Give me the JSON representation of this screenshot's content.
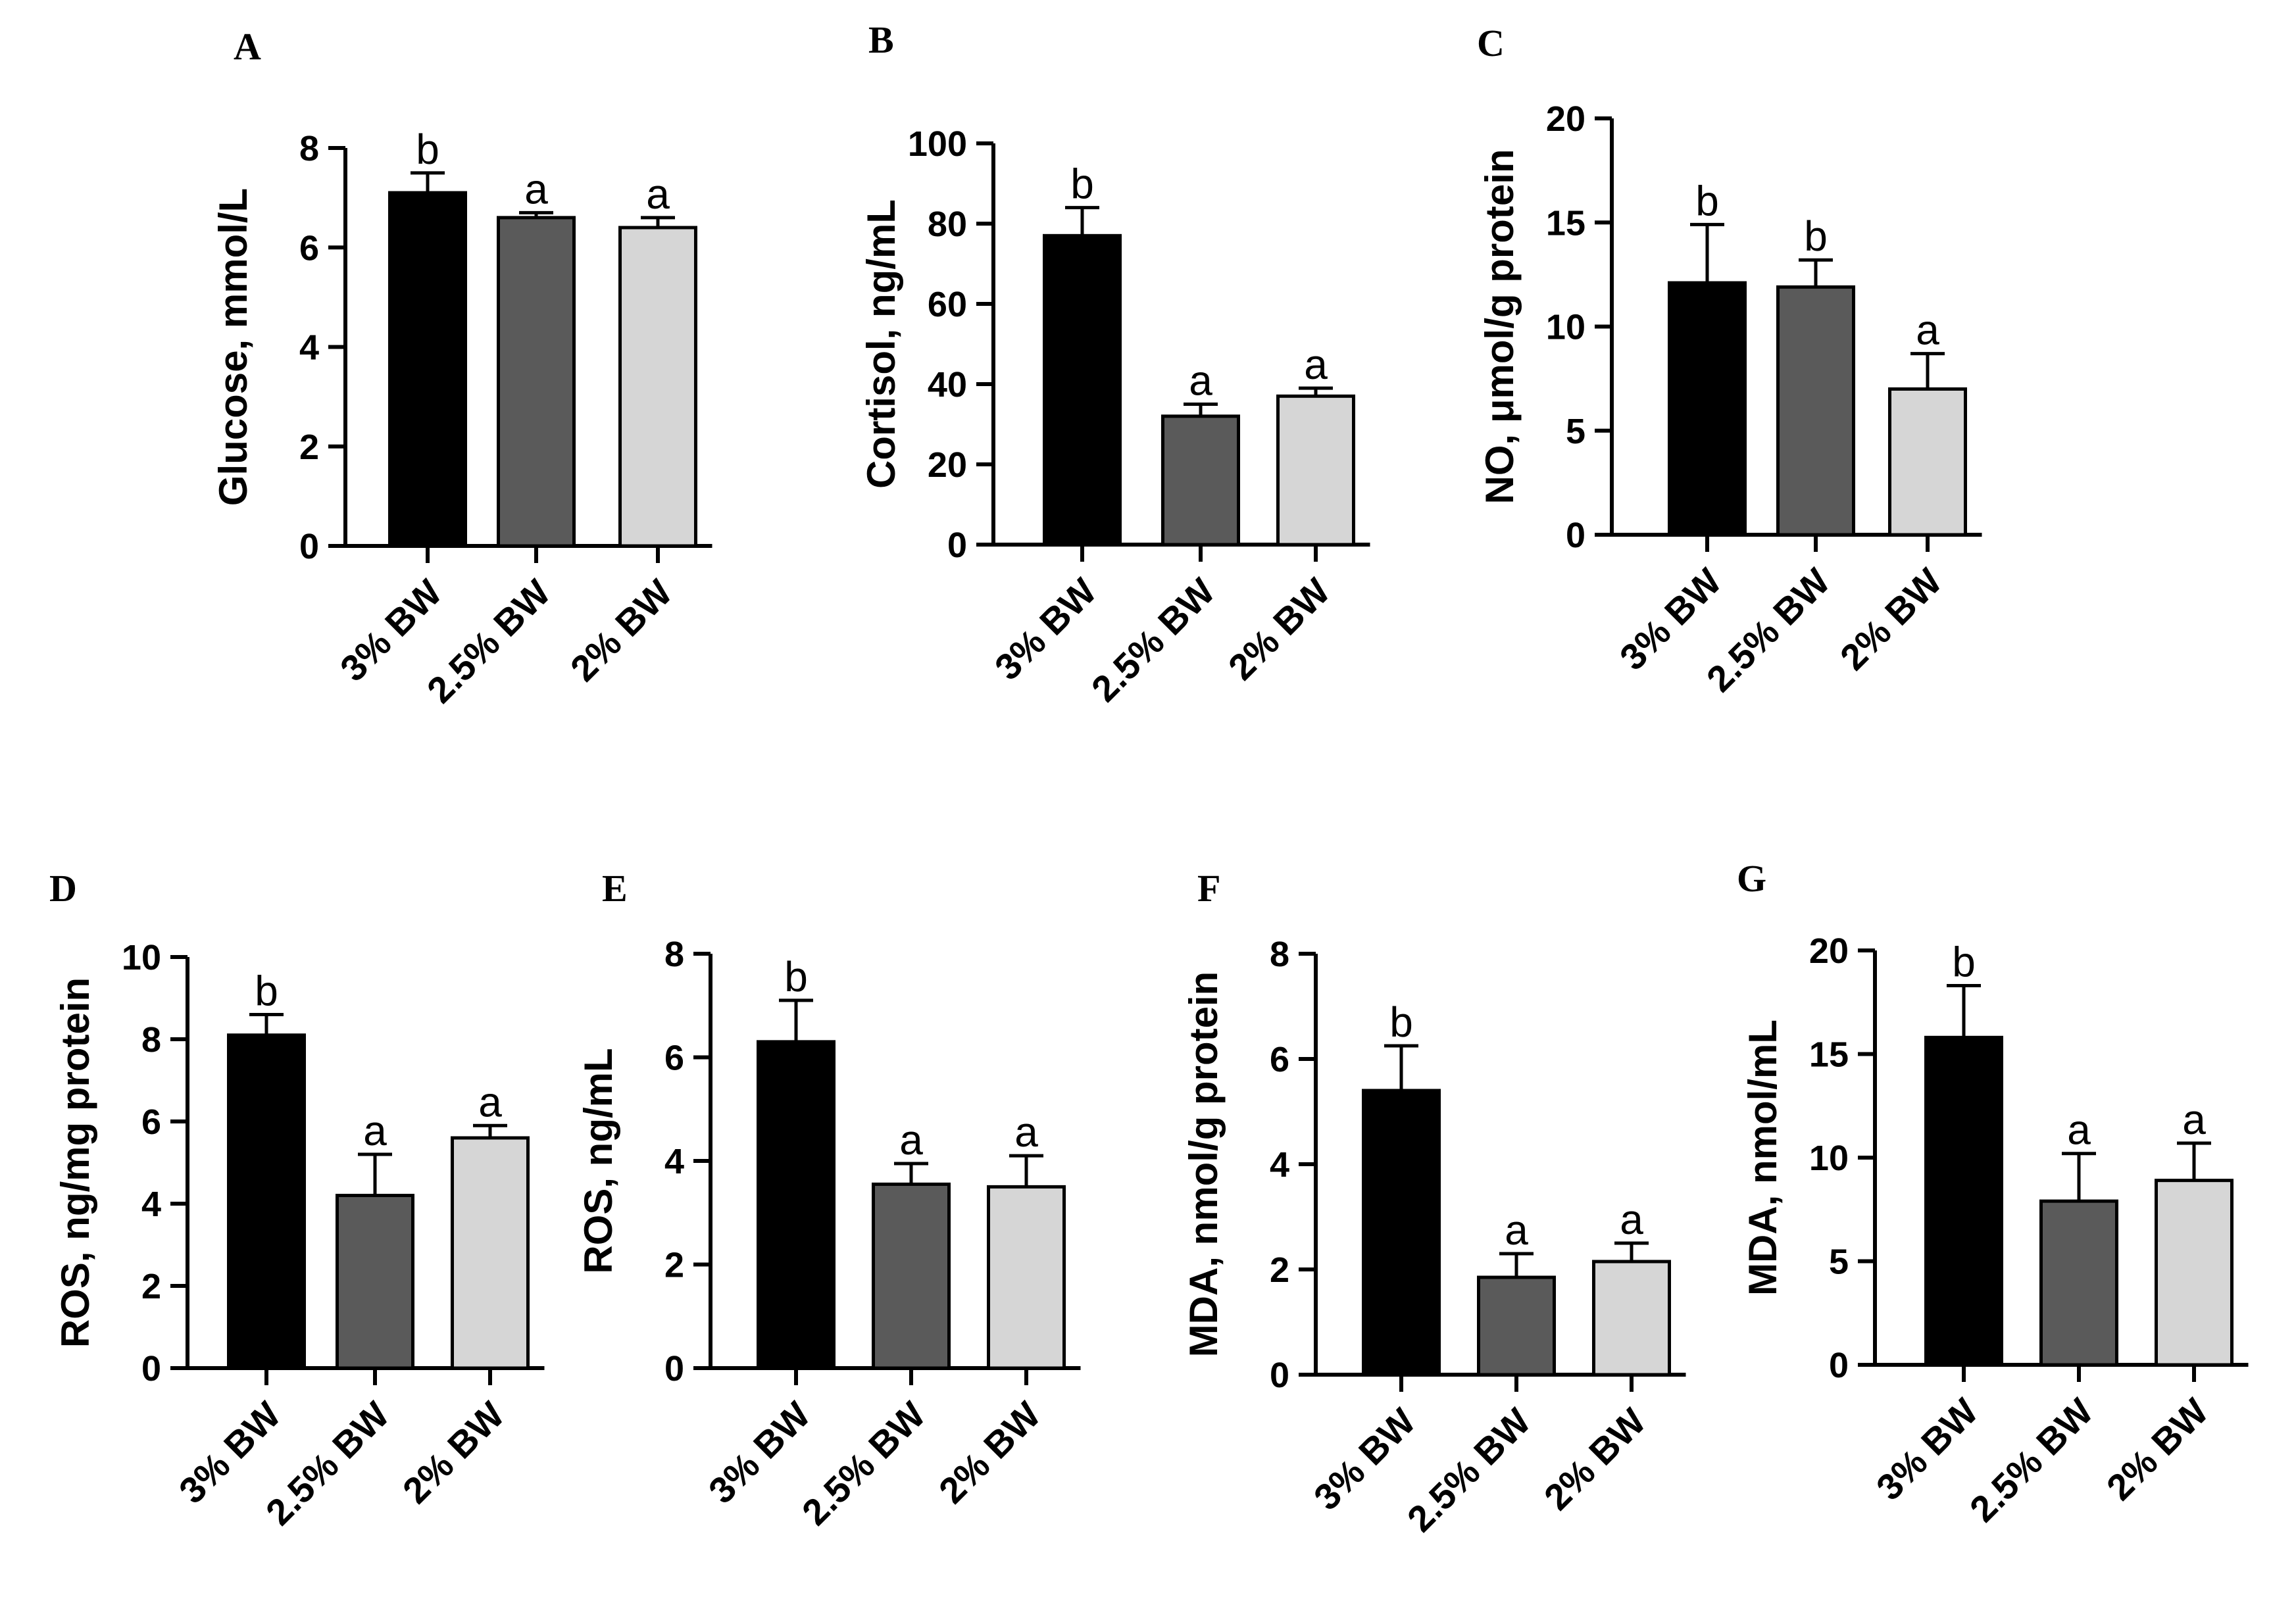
{
  "figure": {
    "groups": [
      "3% BW",
      "2.5% BW",
      "2% BW"
    ],
    "bar_colors": [
      "#000000",
      "#5a5a5a",
      "#d6d6d6"
    ]
  },
  "chart_data": [
    {
      "panel": "A",
      "type": "bar",
      "categories": [
        "3% BW",
        "2.5% BW",
        "2% BW"
      ],
      "values": [
        7.1,
        6.6,
        6.4
      ],
      "errors": [
        0.4,
        0.1,
        0.2
      ],
      "significance": [
        "b",
        "a",
        "a"
      ],
      "ylabel": "Glucose, mmol/L",
      "ylim": [
        0,
        8
      ],
      "yticks": [
        0,
        2,
        4,
        6,
        8
      ]
    },
    {
      "panel": "B",
      "type": "bar",
      "categories": [
        "3% BW",
        "2.5% BW",
        "2% BW"
      ],
      "values": [
        77,
        32,
        37
      ],
      "errors": [
        7,
        3,
        2
      ],
      "significance": [
        "b",
        "a",
        "a"
      ],
      "ylabel": "Cortisol, ng/mL",
      "ylim": [
        0,
        100
      ],
      "yticks": [
        0,
        20,
        40,
        60,
        80,
        100
      ]
    },
    {
      "panel": "C",
      "type": "bar",
      "categories": [
        "3% BW",
        "2.5% BW",
        "2% BW"
      ],
      "values": [
        12.1,
        11.9,
        7.0
      ],
      "errors": [
        2.8,
        1.3,
        1.7
      ],
      "significance": [
        "b",
        "b",
        "a"
      ],
      "ylabel": "NO, μmol/g protein",
      "ylim": [
        0,
        20
      ],
      "yticks": [
        0,
        5,
        10,
        15,
        20
      ]
    },
    {
      "panel": "D",
      "type": "bar",
      "categories": [
        "3% BW",
        "2.5% BW",
        "2% BW"
      ],
      "values": [
        8.1,
        4.2,
        5.6
      ],
      "errors": [
        0.5,
        1.0,
        0.3
      ],
      "significance": [
        "b",
        "a",
        "a"
      ],
      "ylabel": "ROS, ng/mg protein",
      "ylim": [
        0,
        10
      ],
      "yticks": [
        0,
        2,
        4,
        6,
        8,
        10
      ]
    },
    {
      "panel": "E",
      "type": "bar",
      "categories": [
        "3% BW",
        "2.5% BW",
        "2% BW"
      ],
      "values": [
        6.3,
        3.55,
        3.5
      ],
      "errors": [
        0.8,
        0.4,
        0.6
      ],
      "significance": [
        "b",
        "a",
        "a"
      ],
      "ylabel": "ROS, ng/mL",
      "ylim": [
        0,
        8
      ],
      "yticks": [
        0,
        2,
        4,
        6,
        8
      ]
    },
    {
      "panel": "F",
      "type": "bar",
      "categories": [
        "3% BW",
        "2.5% BW",
        "2% BW"
      ],
      "values": [
        5.4,
        1.85,
        2.15
      ],
      "errors": [
        0.85,
        0.45,
        0.35
      ],
      "significance": [
        "b",
        "a",
        "a"
      ],
      "ylabel": "MDA, nmol/g protein",
      "ylim": [
        0,
        8
      ],
      "yticks": [
        0,
        2,
        4,
        6,
        8
      ]
    },
    {
      "panel": "G",
      "type": "bar",
      "categories": [
        "3% BW",
        "2.5% BW",
        "2% BW"
      ],
      "values": [
        15.8,
        7.9,
        8.9
      ],
      "errors": [
        2.5,
        2.3,
        1.8
      ],
      "significance": [
        "b",
        "a",
        "a"
      ],
      "ylabel": "MDA, nmol/mL",
      "ylim": [
        0,
        20
      ],
      "yticks": [
        0,
        5,
        10,
        15,
        20
      ]
    }
  ]
}
